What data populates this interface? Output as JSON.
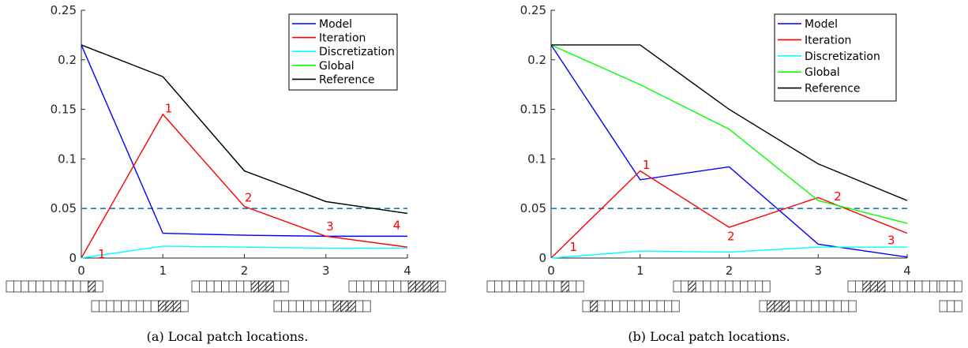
{
  "chart_data": [
    {
      "type": "line",
      "caption": "(a)  Local patch locations.",
      "x": [
        0,
        1,
        2,
        3,
        4
      ],
      "xticks": [
        "0",
        "1",
        "2",
        "3",
        "4"
      ],
      "yticks": [
        "0",
        "0.05",
        "0.1",
        "0.15",
        "0.2",
        "0.25"
      ],
      "xlim": [
        0,
        4
      ],
      "ylim": [
        0,
        0.25
      ],
      "grid": false,
      "legend_position": "top-right",
      "series": [
        {
          "name": "Model",
          "color": "#0000ff",
          "values": [
            0.215,
            0.025,
            0.023,
            0.022,
            0.022
          ]
        },
        {
          "name": "Iteration",
          "color": "#ff0000",
          "values": [
            0.0,
            0.145,
            0.052,
            0.022,
            0.011
          ]
        },
        {
          "name": "Discretization",
          "color": "#00ffff",
          "values": [
            0.0,
            0.012,
            0.011,
            0.01,
            0.01
          ]
        },
        {
          "name": "Global",
          "color": "#00ff00",
          "values": [
            0.215,
            0.183,
            0.088,
            0.057,
            0.045
          ]
        },
        {
          "name": "Reference",
          "color": "#000000",
          "values": [
            0.215,
            0.183,
            0.088,
            0.057,
            0.045
          ]
        }
      ],
      "threshold": {
        "value": 0.05,
        "color": "#1f77b4",
        "style": "dashed"
      },
      "annotations": [
        {
          "text": "1",
          "x": 0.25,
          "y": 0.0
        },
        {
          "text": "1",
          "x": 1.07,
          "y": 0.147
        },
        {
          "text": "2",
          "x": 2.05,
          "y": 0.057
        },
        {
          "text": "3",
          "x": 3.05,
          "y": 0.028
        },
        {
          "text": "4",
          "x": 3.87,
          "y": 0.029
        }
      ],
      "patch_strips": [
        {
          "row": 0,
          "cells": 13,
          "hatched": [
            11
          ]
        },
        {
          "row": 1,
          "cells": 13,
          "hatched": [
            9,
            10,
            11
          ]
        },
        {
          "row": 0,
          "cells": 13,
          "hatched": [
            8,
            9,
            10
          ]
        },
        {
          "row": 1,
          "cells": 13,
          "hatched": [
            8,
            9,
            10
          ]
        },
        {
          "row": 0,
          "cells": 13,
          "hatched": [
            8,
            9,
            10,
            11
          ]
        }
      ]
    },
    {
      "type": "line",
      "caption": "(b)  Local patch locations.",
      "x": [
        0,
        1,
        2,
        3,
        4
      ],
      "xticks": [
        "0",
        "1",
        "2",
        "3",
        "4"
      ],
      "yticks": [
        "0",
        "0.05",
        "0.1",
        "0.15",
        "0.2",
        "0.25"
      ],
      "xlim": [
        0,
        4
      ],
      "ylim": [
        0,
        0.25
      ],
      "grid": false,
      "legend_position": "top-right",
      "series": [
        {
          "name": "Model",
          "color": "#0000ff",
          "values": [
            0.215,
            0.079,
            0.092,
            0.014,
            0.001
          ]
        },
        {
          "name": "Iteration",
          "color": "#ff0000",
          "values": [
            0.0,
            0.088,
            0.031,
            0.061,
            0.025
          ]
        },
        {
          "name": "Discretization",
          "color": "#00ffff",
          "values": [
            0.0,
            0.007,
            0.006,
            0.011,
            0.011
          ]
        },
        {
          "name": "Global",
          "color": "#00ff00",
          "values": [
            0.215,
            0.175,
            0.13,
            0.058,
            0.035
          ]
        },
        {
          "name": "Reference",
          "color": "#000000",
          "values": [
            0.215,
            0.215,
            0.15,
            0.095,
            0.058
          ]
        }
      ],
      "threshold": {
        "value": 0.05,
        "color": "#1f77b4",
        "style": "dashed"
      },
      "annotations": [
        {
          "text": "1",
          "x": 0.25,
          "y": 0.007
        },
        {
          "text": "1",
          "x": 1.07,
          "y": 0.09
        },
        {
          "text": "2",
          "x": 2.02,
          "y": 0.018
        },
        {
          "text": "2",
          "x": 3.22,
          "y": 0.058
        },
        {
          "text": "3",
          "x": 3.82,
          "y": 0.014
        }
      ],
      "patch_strips": [
        {
          "row": 0,
          "cells": 13,
          "hatched": [
            10
          ]
        },
        {
          "row": 1,
          "cells": 13,
          "hatched": [
            1
          ]
        },
        {
          "row": 0,
          "cells": 13,
          "hatched": [
            2
          ]
        },
        {
          "row": 1,
          "cells": 13,
          "hatched": [
            1,
            2,
            3
          ]
        },
        {
          "row": 0,
          "cells": 13,
          "hatched": [
            2,
            3,
            4
          ]
        },
        {
          "row": 1,
          "cells": 13,
          "hatched": [
            11
          ]
        },
        {
          "row": 0,
          "cells": 13,
          "hatched": [
            11
          ]
        }
      ]
    }
  ]
}
